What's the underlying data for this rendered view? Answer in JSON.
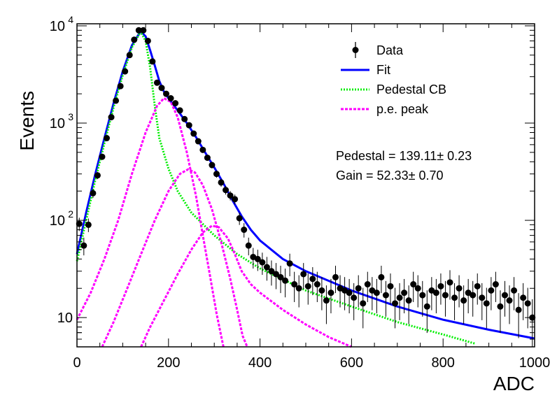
{
  "chart_data": {
    "type": "scatter",
    "xlabel": "ADC",
    "ylabel": "Events",
    "xlim": [
      0,
      1000
    ],
    "ylim": [
      5,
      10500
    ],
    "yscale": "log",
    "grid": false,
    "legend_position": "top-right",
    "x_ticks": [
      0,
      200,
      400,
      600,
      800,
      1000
    ],
    "x_tick_labels": [
      "0",
      "200",
      "400",
      "600",
      "800",
      "1000"
    ],
    "y_tick_labels": [
      {
        "value": 10,
        "base": "10",
        "exp": ""
      },
      {
        "value": 100,
        "base": "10",
        "exp": "2"
      },
      {
        "value": 1000,
        "base": "10",
        "exp": "3"
      },
      {
        "value": 10000,
        "base": "10",
        "exp": "4"
      }
    ],
    "legend": [
      {
        "label": "Data",
        "style": "marker",
        "color": "#000000"
      },
      {
        "label": "Fit",
        "style": "solid",
        "color": "#0000ff"
      },
      {
        "label": "Pedestal CB",
        "style": "dotted",
        "color": "#00ee00"
      },
      {
        "label": "p.e. peak",
        "style": "dashed",
        "color": "#ff00ff"
      }
    ],
    "annotations": [
      {
        "text": "Pedestal = 139.11± 0.23"
      },
      {
        "text": "Gain = 52.33± 0.70"
      }
    ],
    "series": [
      {
        "name": "Data",
        "style": "marker",
        "color": "#000000",
        "points": [
          [
            5,
            92
          ],
          [
            15,
            55
          ],
          [
            25,
            90
          ],
          [
            35,
            190
          ],
          [
            45,
            290
          ],
          [
            55,
            450
          ],
          [
            65,
            700
          ],
          [
            75,
            1150
          ],
          [
            85,
            1700
          ],
          [
            95,
            2400
          ],
          [
            105,
            3400
          ],
          [
            115,
            5000
          ],
          [
            125,
            7200
          ],
          [
            135,
            9000
          ],
          [
            145,
            9000
          ],
          [
            155,
            7000
          ],
          [
            165,
            4300
          ],
          [
            175,
            2600
          ],
          [
            185,
            2300
          ],
          [
            195,
            2000
          ],
          [
            205,
            1800
          ],
          [
            215,
            1600
          ],
          [
            225,
            1350
          ],
          [
            235,
            1100
          ],
          [
            245,
            950
          ],
          [
            255,
            780
          ],
          [
            265,
            650
          ],
          [
            275,
            530
          ],
          [
            285,
            440
          ],
          [
            295,
            370
          ],
          [
            305,
            300
          ],
          [
            315,
            245
          ],
          [
            325,
            205
          ],
          [
            335,
            180
          ],
          [
            345,
            165
          ],
          [
            355,
            105
          ],
          [
            365,
            80
          ],
          [
            375,
            55
          ],
          [
            385,
            42
          ],
          [
            395,
            40
          ],
          [
            405,
            37
          ],
          [
            415,
            33
          ],
          [
            425,
            30
          ],
          [
            435,
            28
          ],
          [
            445,
            26
          ],
          [
            455,
            24
          ],
          [
            465,
            36
          ],
          [
            475,
            22
          ],
          [
            485,
            20
          ],
          [
            495,
            28
          ],
          [
            505,
            21
          ],
          [
            515,
            25
          ],
          [
            525,
            22
          ],
          [
            535,
            19
          ],
          [
            545,
            15
          ],
          [
            555,
            18
          ],
          [
            565,
            26
          ],
          [
            575,
            20
          ],
          [
            585,
            19
          ],
          [
            595,
            18
          ],
          [
            605,
            16
          ],
          [
            615,
            20
          ],
          [
            625,
            14
          ],
          [
            635,
            22
          ],
          [
            645,
            19
          ],
          [
            655,
            18
          ],
          [
            665,
            26
          ],
          [
            675,
            17
          ],
          [
            685,
            21
          ],
          [
            695,
            14
          ],
          [
            705,
            16
          ],
          [
            715,
            18
          ],
          [
            725,
            15
          ],
          [
            735,
            22
          ],
          [
            745,
            20
          ],
          [
            755,
            17
          ],
          [
            765,
            13
          ],
          [
            775,
            19
          ],
          [
            785,
            18
          ],
          [
            795,
            21
          ],
          [
            805,
            17
          ],
          [
            815,
            23
          ],
          [
            825,
            16
          ],
          [
            835,
            20
          ],
          [
            845,
            15
          ],
          [
            855,
            18
          ],
          [
            865,
            17
          ],
          [
            875,
            21
          ],
          [
            885,
            16
          ],
          [
            895,
            14
          ],
          [
            905,
            19
          ],
          [
            915,
            22
          ],
          [
            925,
            13
          ],
          [
            935,
            17
          ],
          [
            945,
            15
          ],
          [
            955,
            19
          ],
          [
            965,
            12
          ],
          [
            975,
            16
          ],
          [
            985,
            14
          ],
          [
            995,
            10
          ]
        ]
      },
      {
        "name": "Fit",
        "style": "solid",
        "color": "#0000ff",
        "points": [
          [
            0,
            45
          ],
          [
            20,
            120
          ],
          [
            40,
            300
          ],
          [
            60,
            700
          ],
          [
            80,
            1600
          ],
          [
            100,
            3400
          ],
          [
            120,
            6300
          ],
          [
            139,
            8800
          ],
          [
            150,
            7800
          ],
          [
            160,
            5600
          ],
          [
            170,
            3900
          ],
          [
            180,
            2700
          ],
          [
            190,
            2100
          ],
          [
            200,
            1800
          ],
          [
            220,
            1350
          ],
          [
            240,
            1000
          ],
          [
            260,
            720
          ],
          [
            280,
            500
          ],
          [
            300,
            350
          ],
          [
            320,
            240
          ],
          [
            340,
            160
          ],
          [
            360,
            110
          ],
          [
            380,
            80
          ],
          [
            400,
            62
          ],
          [
            450,
            40
          ],
          [
            500,
            30
          ],
          [
            600,
            19
          ],
          [
            700,
            13
          ],
          [
            800,
            9.5
          ],
          [
            900,
            7.5
          ],
          [
            1000,
            6.1
          ]
        ]
      },
      {
        "name": "Pedestal CB",
        "style": "dotted",
        "color": "#00ee00",
        "points": [
          [
            0,
            38
          ],
          [
            20,
            100
          ],
          [
            40,
            260
          ],
          [
            60,
            620
          ],
          [
            80,
            1450
          ],
          [
            100,
            3100
          ],
          [
            120,
            6000
          ],
          [
            139,
            8700
          ],
          [
            150,
            7000
          ],
          [
            160,
            3700
          ],
          [
            170,
            1500
          ],
          [
            180,
            700
          ],
          [
            200,
            340
          ],
          [
            220,
            200
          ],
          [
            250,
            120
          ],
          [
            300,
            70
          ],
          [
            350,
            45
          ],
          [
            400,
            32
          ],
          [
            500,
            19
          ],
          [
            600,
            13
          ],
          [
            700,
            9
          ],
          [
            800,
            6.7
          ],
          [
            870,
            5.4
          ]
        ]
      },
      {
        "name": "p.e. peak 1",
        "style": "dashed",
        "color": "#ff00ff",
        "points": [
          [
            0,
            9.5
          ],
          [
            30,
            18
          ],
          [
            60,
            40
          ],
          [
            90,
            100
          ],
          [
            120,
            300
          ],
          [
            150,
            800
          ],
          [
            175,
            1500
          ],
          [
            190,
            1800
          ],
          [
            205,
            1650
          ],
          [
            220,
            1150
          ],
          [
            240,
            500
          ],
          [
            260,
            180
          ],
          [
            275,
            70
          ],
          [
            290,
            28
          ],
          [
            305,
            11
          ],
          [
            320,
            5
          ]
        ]
      },
      {
        "name": "p.e. peak 2",
        "style": "dashed",
        "color": "#ff00ff",
        "points": [
          [
            55,
            5
          ],
          [
            80,
            9
          ],
          [
            110,
            20
          ],
          [
            140,
            45
          ],
          [
            170,
            100
          ],
          [
            200,
            200
          ],
          [
            225,
            300
          ],
          [
            243,
            335
          ],
          [
            258,
            310
          ],
          [
            275,
            230
          ],
          [
            295,
            130
          ],
          [
            315,
            60
          ],
          [
            335,
            25
          ],
          [
            350,
            12
          ],
          [
            362,
            6.5
          ],
          [
            372,
            5
          ]
        ]
      },
      {
        "name": "p.e. peak 3",
        "style": "dashed",
        "color": "#ff00ff",
        "points": [
          [
            140,
            5
          ],
          [
            160,
            8
          ],
          [
            190,
            15
          ],
          [
            220,
            28
          ],
          [
            250,
            50
          ],
          [
            275,
            75
          ],
          [
            295,
            88
          ],
          [
            310,
            85
          ],
          [
            330,
            65
          ],
          [
            345,
            45
          ],
          [
            360,
            30
          ],
          [
            380,
            22
          ],
          [
            400,
            18
          ],
          [
            450,
            12
          ],
          [
            500,
            8.5
          ],
          [
            550,
            6.3
          ],
          [
            600,
            5
          ]
        ]
      }
    ]
  }
}
